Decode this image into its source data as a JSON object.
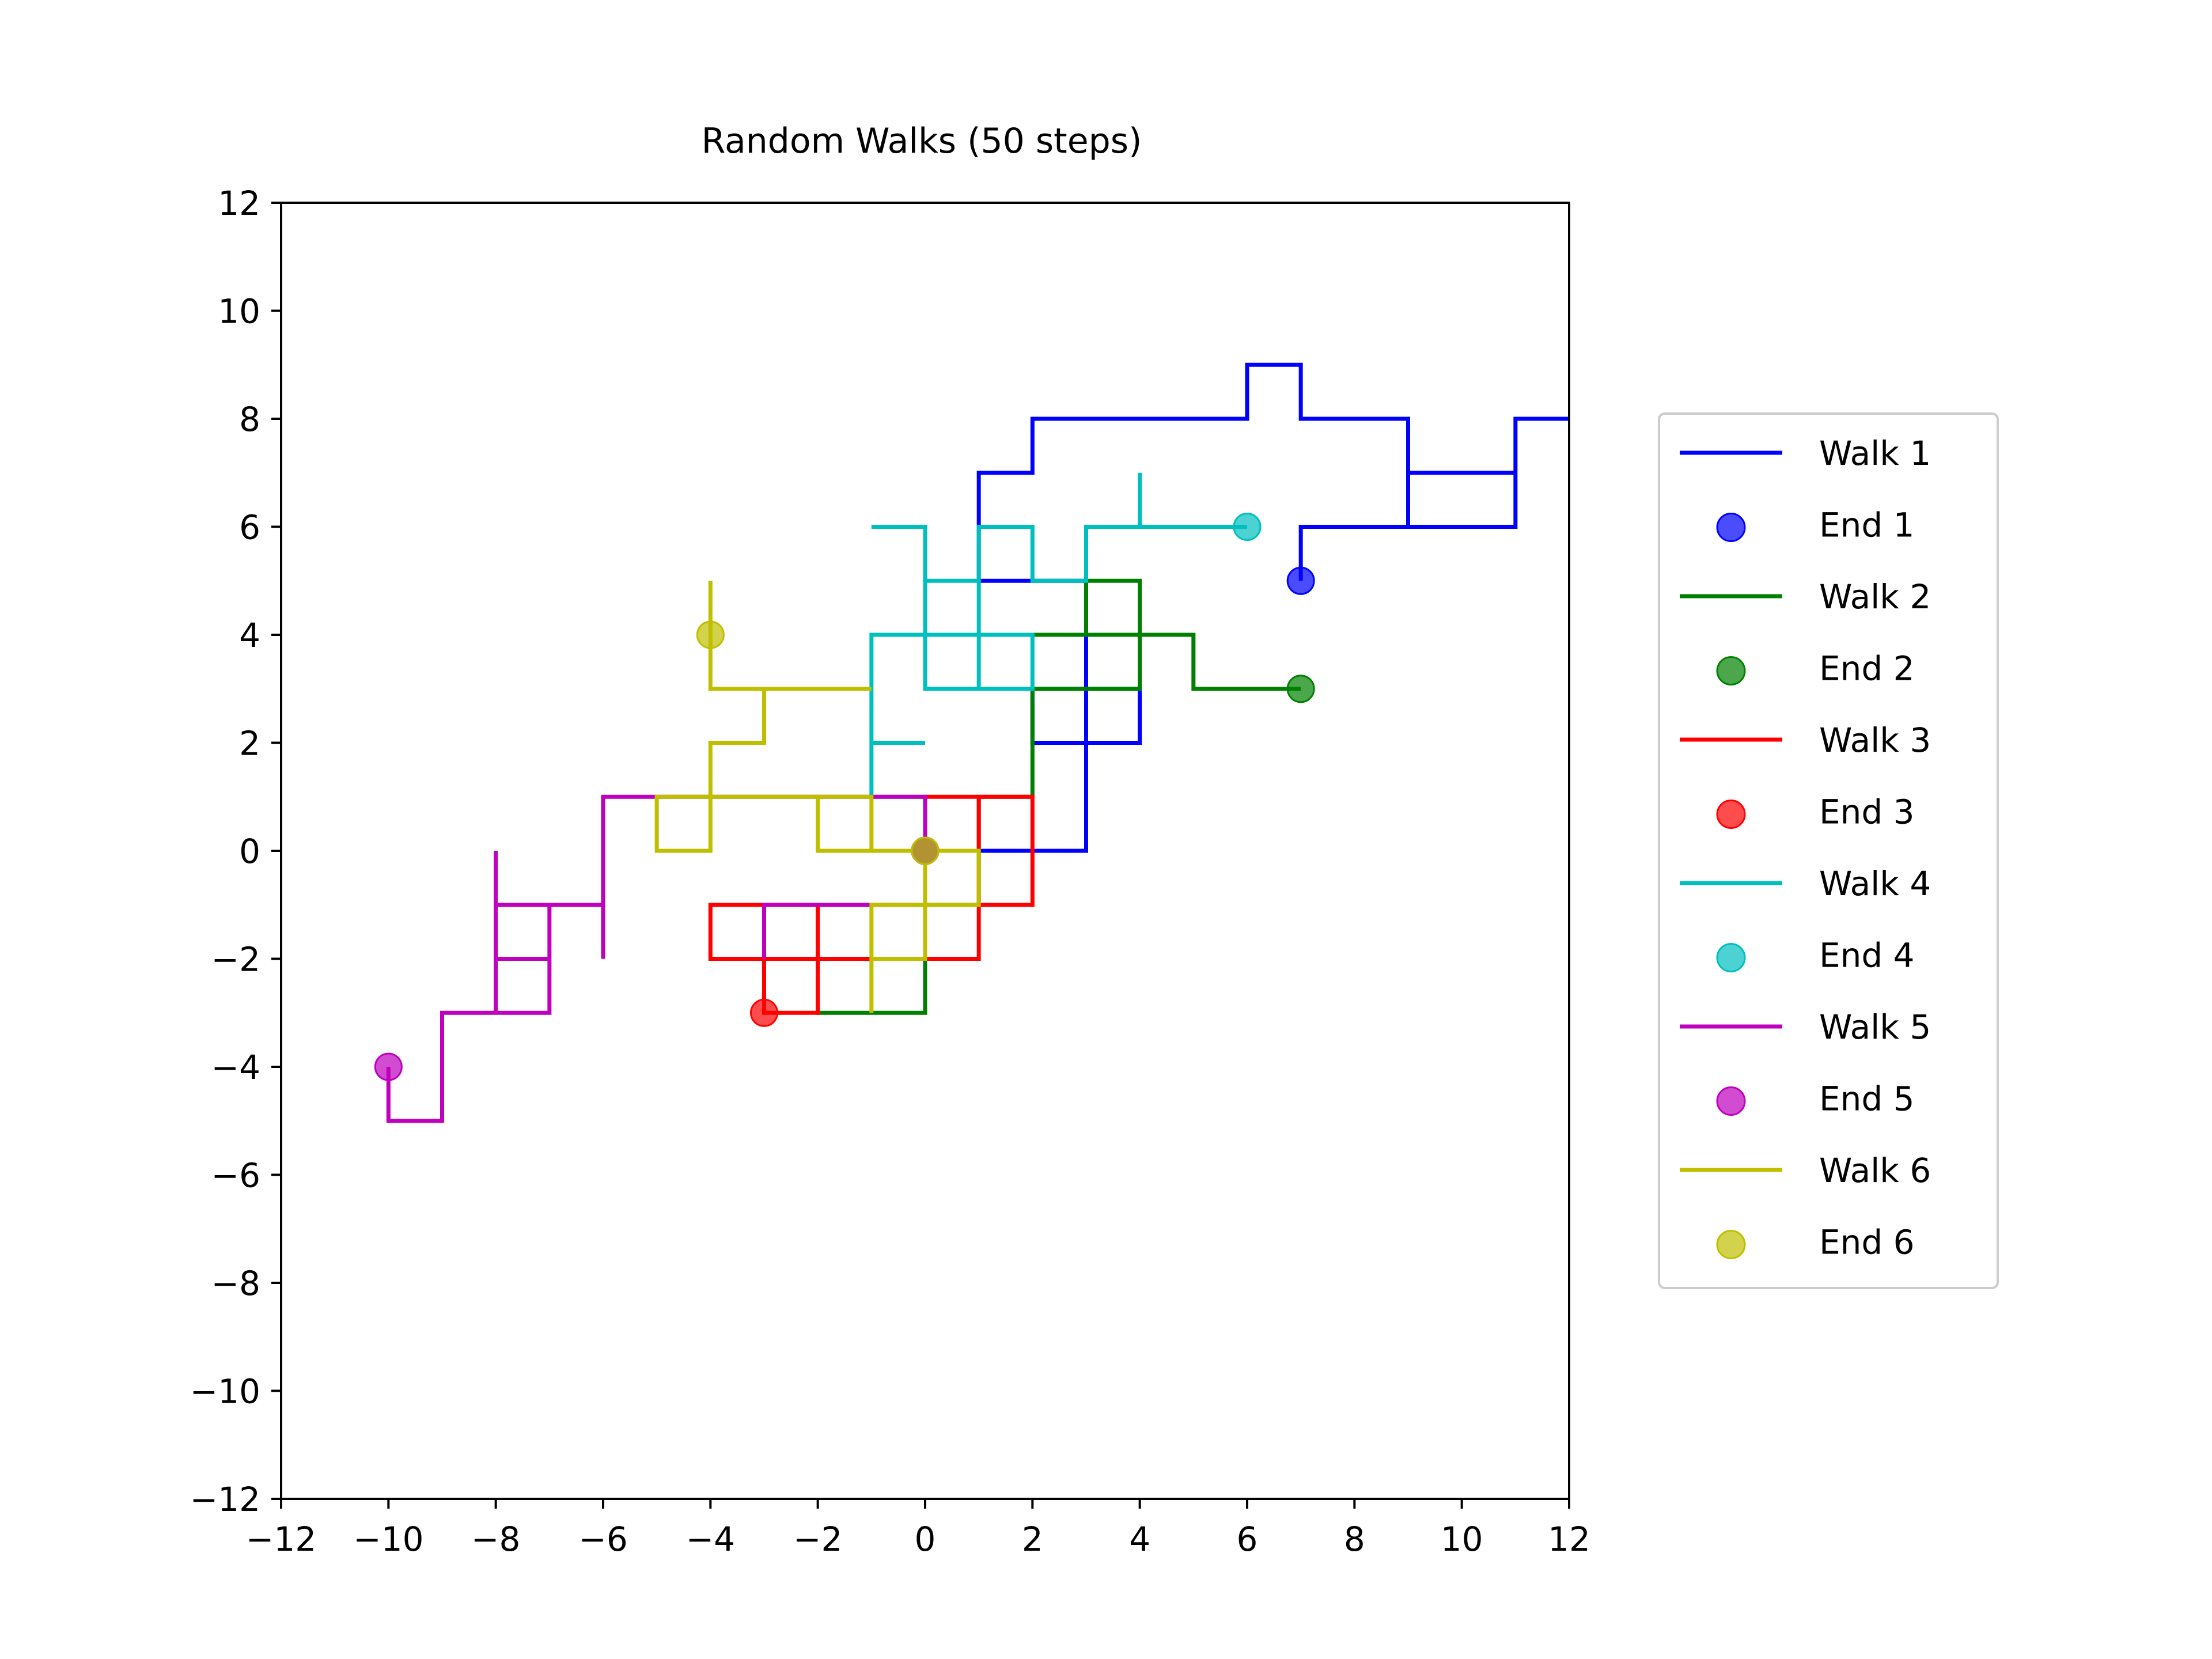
{
  "chart_data": {
    "type": "line",
    "title": "Random Walks (50 steps)",
    "xlabel": "",
    "ylabel": "",
    "xlim": [
      -12,
      12
    ],
    "ylim": [
      -12,
      12
    ],
    "xticks": [
      -12,
      -10,
      -8,
      -6,
      -4,
      -2,
      0,
      2,
      4,
      6,
      8,
      10,
      12
    ],
    "yticks": [
      -12,
      -10,
      -8,
      -6,
      -4,
      -2,
      0,
      2,
      4,
      6,
      8,
      10,
      12
    ],
    "xtick_labels": [
      "−12",
      "−10",
      "−8",
      "−6",
      "−4",
      "−2",
      "0",
      "2",
      "4",
      "6",
      "8",
      "10",
      "12"
    ],
    "ytick_labels": [
      "−12",
      "−10",
      "−8",
      "−6",
      "−4",
      "−2",
      "0",
      "2",
      "4",
      "6",
      "8",
      "10",
      "12"
    ],
    "grid": false,
    "legend_position": "outside-right",
    "start": [
      0,
      0
    ],
    "series": [
      {
        "name": "Walk 1",
        "end_name": "End 1",
        "color": "#0000ff",
        "points": [
          [
            0,
            0
          ],
          [
            1,
            0
          ],
          [
            2,
            0
          ],
          [
            3,
            0
          ],
          [
            3,
            1
          ],
          [
            3,
            2
          ],
          [
            4,
            2
          ],
          [
            4,
            3
          ],
          [
            3,
            3
          ],
          [
            2,
            3
          ],
          [
            2,
            2
          ],
          [
            3,
            2
          ],
          [
            3,
            3
          ],
          [
            3,
            4
          ],
          [
            3,
            5
          ],
          [
            2,
            5
          ],
          [
            1,
            5
          ],
          [
            1,
            6
          ],
          [
            1,
            7
          ],
          [
            2,
            7
          ],
          [
            2,
            8
          ],
          [
            3,
            8
          ],
          [
            4,
            8
          ],
          [
            5,
            8
          ],
          [
            6,
            8
          ],
          [
            6,
            9
          ],
          [
            7,
            9
          ],
          [
            7,
            8
          ],
          [
            8,
            8
          ],
          [
            9,
            8
          ],
          [
            9,
            7
          ],
          [
            10,
            7
          ],
          [
            11,
            7
          ],
          [
            11,
            8
          ],
          [
            12,
            8
          ],
          [
            11,
            8
          ],
          [
            11,
            7
          ],
          [
            11,
            6
          ],
          [
            10,
            6
          ],
          [
            9,
            6
          ],
          [
            9,
            7
          ],
          [
            9,
            6
          ],
          [
            8,
            6
          ],
          [
            7,
            6
          ],
          [
            7,
            5
          ]
        ],
        "end": [
          7,
          5
        ]
      },
      {
        "name": "Walk 2",
        "end_name": "End 2",
        "color": "#008000",
        "points": [
          [
            0,
            0
          ],
          [
            0,
            -1
          ],
          [
            0,
            -2
          ],
          [
            0,
            -3
          ],
          [
            -1,
            -3
          ],
          [
            -2,
            -3
          ],
          [
            -2,
            -2
          ],
          [
            -2,
            -1
          ],
          [
            -1,
            -1
          ],
          [
            0,
            -1
          ],
          [
            1,
            -1
          ],
          [
            1,
            0
          ],
          [
            1,
            1
          ],
          [
            2,
            1
          ],
          [
            2,
            2
          ],
          [
            2,
            3
          ],
          [
            3,
            3
          ],
          [
            4,
            3
          ],
          [
            4,
            4
          ],
          [
            4,
            5
          ],
          [
            3,
            5
          ],
          [
            3,
            4
          ],
          [
            2,
            4
          ],
          [
            3,
            4
          ],
          [
            4,
            4
          ],
          [
            5,
            4
          ],
          [
            5,
            3
          ],
          [
            6,
            3
          ],
          [
            7,
            3
          ]
        ],
        "end": [
          7,
          3
        ]
      },
      {
        "name": "Walk 3",
        "end_name": "End 3",
        "color": "#ff0000",
        "points": [
          [
            0,
            0
          ],
          [
            0,
            1
          ],
          [
            1,
            1
          ],
          [
            2,
            1
          ],
          [
            2,
            0
          ],
          [
            2,
            -1
          ],
          [
            1,
            -1
          ],
          [
            1,
            0
          ],
          [
            1,
            1
          ],
          [
            1,
            0
          ],
          [
            1,
            -1
          ],
          [
            1,
            -2
          ],
          [
            0,
            -2
          ],
          [
            -1,
            -2
          ],
          [
            -2,
            -2
          ],
          [
            -2,
            -1
          ],
          [
            -3,
            -1
          ],
          [
            -4,
            -1
          ],
          [
            -4,
            -2
          ],
          [
            -3,
            -2
          ],
          [
            -2,
            -2
          ],
          [
            -2,
            -3
          ],
          [
            -3,
            -3
          ],
          [
            -3,
            -2
          ],
          [
            -3,
            -3
          ]
        ],
        "end": [
          -3,
          -3
        ]
      },
      {
        "name": "Walk 4",
        "end_name": "End 4",
        "color": "#00bfbf",
        "points": [
          [
            0,
            0
          ],
          [
            0,
            1
          ],
          [
            -1,
            1
          ],
          [
            -1,
            2
          ],
          [
            0,
            2
          ],
          [
            -1,
            2
          ],
          [
            -1,
            3
          ],
          [
            -1,
            4
          ],
          [
            0,
            4
          ],
          [
            0,
            5
          ],
          [
            0,
            6
          ],
          [
            -1,
            6
          ],
          [
            0,
            6
          ],
          [
            0,
            5
          ],
          [
            1,
            5
          ],
          [
            1,
            4
          ],
          [
            1,
            3
          ],
          [
            0,
            3
          ],
          [
            0,
            4
          ],
          [
            1,
            4
          ],
          [
            2,
            4
          ],
          [
            2,
            3
          ],
          [
            1,
            3
          ],
          [
            1,
            6
          ],
          [
            2,
            6
          ],
          [
            2,
            5
          ],
          [
            3,
            5
          ],
          [
            3,
            6
          ],
          [
            4,
            6
          ],
          [
            4,
            7
          ],
          [
            4,
            6
          ],
          [
            5,
            6
          ],
          [
            6,
            6
          ]
        ],
        "end": [
          6,
          6
        ]
      },
      {
        "name": "Walk 5",
        "end_name": "End 5",
        "color": "#bf00bf",
        "points": [
          [
            0,
            0
          ],
          [
            0,
            -1
          ],
          [
            -1,
            -1
          ],
          [
            -2,
            -1
          ],
          [
            -3,
            -1
          ],
          [
            -3,
            -2
          ],
          [
            -3,
            -1
          ],
          [
            -2,
            -1
          ],
          [
            -1,
            -1
          ],
          [
            0,
            -1
          ],
          [
            0,
            1
          ],
          [
            -1,
            1
          ],
          [
            -2,
            1
          ],
          [
            -3,
            1
          ],
          [
            -4,
            1
          ],
          [
            -5,
            1
          ],
          [
            -6,
            1
          ],
          [
            -6,
            -2
          ],
          [
            -6,
            -1
          ],
          [
            -7,
            -1
          ],
          [
            -8,
            -1
          ],
          [
            -8,
            0
          ],
          [
            -8,
            -1
          ],
          [
            -8,
            -2
          ],
          [
            -7,
            -2
          ],
          [
            -8,
            -2
          ],
          [
            -8,
            -3
          ],
          [
            -7,
            -3
          ],
          [
            -7,
            -1
          ],
          [
            -7,
            -3
          ],
          [
            -8,
            -3
          ],
          [
            -9,
            -3
          ],
          [
            -9,
            -4
          ],
          [
            -9,
            -5
          ],
          [
            -10,
            -5
          ],
          [
            -10,
            -4
          ]
        ],
        "end": [
          -10,
          -4
        ]
      },
      {
        "name": "Walk 6",
        "end_name": "End 6",
        "color": "#bfbf00",
        "points": [
          [
            0,
            0
          ],
          [
            0,
            -1
          ],
          [
            -1,
            -1
          ],
          [
            -1,
            -2
          ],
          [
            -1,
            -3
          ],
          [
            -1,
            -2
          ],
          [
            0,
            -2
          ],
          [
            0,
            -1
          ],
          [
            1,
            -1
          ],
          [
            1,
            0
          ],
          [
            0,
            0
          ],
          [
            -1,
            0
          ],
          [
            -2,
            0
          ],
          [
            -2,
            1
          ],
          [
            -1,
            1
          ],
          [
            -1,
            0
          ],
          [
            -1,
            1
          ],
          [
            -3,
            1
          ],
          [
            -4,
            1
          ],
          [
            -5,
            1
          ],
          [
            -5,
            0
          ],
          [
            -4,
            0
          ],
          [
            -4,
            1
          ],
          [
            -4,
            2
          ],
          [
            -3,
            2
          ],
          [
            -3,
            3
          ],
          [
            -4,
            3
          ],
          [
            -3,
            3
          ],
          [
            -2,
            3
          ],
          [
            -1,
            3
          ],
          [
            -4,
            3
          ],
          [
            -4,
            4
          ],
          [
            -4,
            5
          ],
          [
            -4,
            4
          ]
        ],
        "end": [
          -4,
          4
        ]
      }
    ]
  }
}
